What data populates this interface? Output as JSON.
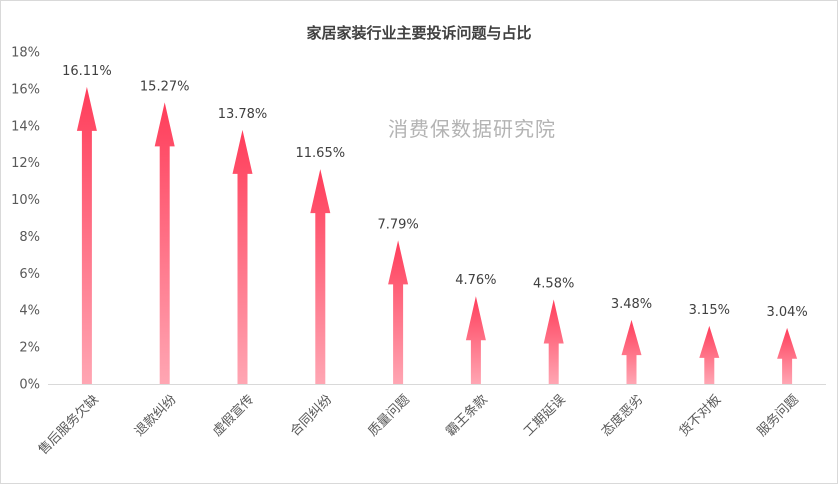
{
  "chart_data": {
    "type": "bar",
    "title": "家居家装行业主要投诉问题与占比",
    "watermark": "消费保数据研究院",
    "categories": [
      "售后服务欠缺",
      "退款纠纷",
      "虚假宣传",
      "合同纠纷",
      "质量问题",
      "霸王条款",
      "工期延误",
      "态度恶劣",
      "货不对板",
      "服务问题"
    ],
    "values": [
      16.11,
      15.27,
      13.78,
      11.65,
      7.79,
      4.76,
      4.58,
      3.48,
      3.15,
      3.04
    ],
    "data_labels": [
      "16.11%",
      "15.27%",
      "13.78%",
      "11.65%",
      "7.79%",
      "4.76%",
      "4.58%",
      "3.48%",
      "3.15%",
      "3.04%"
    ],
    "y_ticks": [
      "0%",
      "2%",
      "4%",
      "6%",
      "8%",
      "10%",
      "12%",
      "14%",
      "16%",
      "18%"
    ],
    "ylim": [
      0,
      18
    ],
    "xlabel": "",
    "ylabel": "",
    "grid": false,
    "legend": "none",
    "bar_style": "arrow",
    "colors": {
      "arrow_top": "#ff3d5a",
      "arrow_bottom": "#ffa6b3",
      "axis": "#d9d9d9"
    }
  }
}
